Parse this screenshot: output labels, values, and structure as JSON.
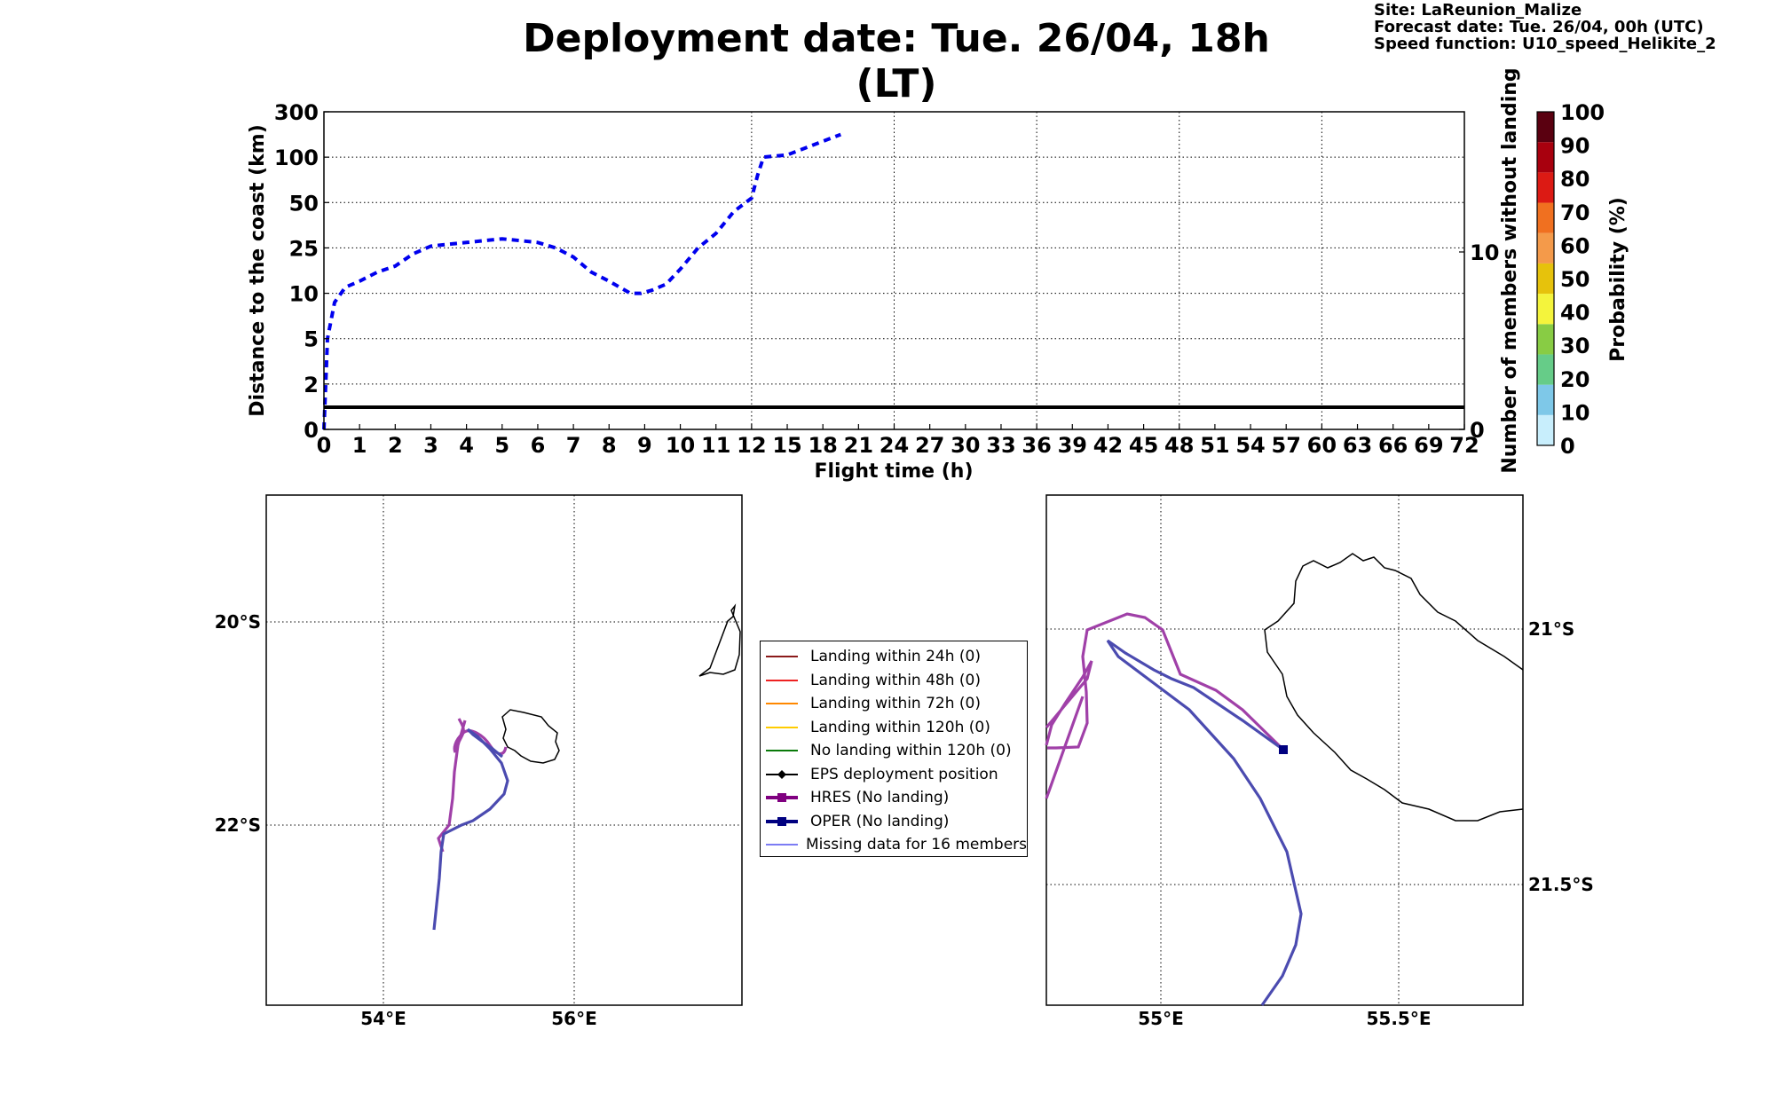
{
  "title": "Deployment date: Tue. 26/04, 18h (LT)",
  "meta": {
    "site": "Site: LaReunion_Malize",
    "forecast": "Forecast date: Tue. 26/04, 00h (UTC)",
    "speed": "Speed function: U10_speed_Helikite_2"
  },
  "chart_data": [
    {
      "type": "line",
      "xlabel": "Flight time (h)",
      "ylabel": "Distance to the coast (km)",
      "y2label": "Number of members without landing",
      "x_ticks": [
        "0",
        "1",
        "2",
        "3",
        "4",
        "5",
        "6",
        "7",
        "8",
        "9",
        "10",
        "11",
        "12",
        "15",
        "18",
        "21",
        "24",
        "27",
        "30",
        "33",
        "36",
        "39",
        "42",
        "45",
        "48",
        "51",
        "54",
        "57",
        "60",
        "63",
        "66",
        "69",
        "72"
      ],
      "y_ticks": [
        "0",
        "2",
        "5",
        "10",
        "25",
        "50",
        "100",
        "300"
      ],
      "y2_ticks": [
        "0",
        "10"
      ],
      "series": [
        {
          "style": "dashed",
          "color": "#0000ee",
          "x": [
            0,
            0.1,
            0.3,
            0.6,
            1,
            1.5,
            2,
            2.5,
            3,
            3.5,
            4,
            4.5,
            5,
            5.5,
            6,
            6.5,
            7,
            7.5,
            8,
            8.3,
            8.6,
            8.9,
            9.2,
            9.6,
            10,
            10.5,
            11,
            11.5,
            12,
            12.5,
            13,
            15,
            17,
            18,
            19.5
          ],
          "y": [
            0,
            5,
            9,
            12,
            14,
            17,
            19,
            23,
            26,
            27,
            28,
            29,
            30,
            29,
            28,
            25,
            22,
            17,
            14,
            12,
            10,
            10,
            11,
            13,
            18,
            25,
            33,
            45,
            55,
            80,
            100,
            110,
            150,
            170,
            200
          ]
        },
        {
          "style": "solid",
          "color": "#000000",
          "axis": "right",
          "x": [
            0,
            72
          ],
          "y": [
            1,
            1
          ]
        }
      ],
      "grid": true
    },
    {
      "type": "heatmap",
      "name": "Probability colorbar",
      "label": "Probability (%)",
      "ticks": [
        "0",
        "10",
        "20",
        "30",
        "40",
        "50",
        "60",
        "70",
        "80",
        "90",
        "100"
      ],
      "colors": [
        "#c8eefc",
        "#7ec8e8",
        "#66cc88",
        "#88cc44",
        "#f4f43c",
        "#e6c20c",
        "#f49a4a",
        "#f07020",
        "#dc1a14",
        "#a8000e",
        "#5a0010"
      ]
    }
  ],
  "maps": {
    "left": {
      "x_ticks": [
        "54°E",
        "56°E"
      ],
      "y_ticks": [
        "20°S",
        "22°S"
      ]
    },
    "right": {
      "x_ticks": [
        "55°E",
        "55.5°E"
      ],
      "y_ticks": [
        "21°S",
        "21.5°S"
      ]
    }
  },
  "legend": {
    "items": [
      {
        "label": "Landing within 24h (0)",
        "color": "#8b1a1a",
        "marker": "none",
        "width": 2
      },
      {
        "label": "Landing within 48h (0)",
        "color": "#ee2222",
        "marker": "none",
        "width": 2
      },
      {
        "label": "Landing within 72h (0)",
        "color": "#ff8800",
        "marker": "none",
        "width": 2
      },
      {
        "label": "Landing within 120h (0)",
        "color": "#ffcc00",
        "marker": "none",
        "width": 2
      },
      {
        "label": "No landing within 120h (0)",
        "color": "#0a7a0a",
        "marker": "none",
        "width": 2
      },
      {
        "label": "EPS deployment position",
        "color": "#000000",
        "marker": "diamond",
        "width": 2
      },
      {
        "label": "HRES (No landing)",
        "color": "#800080",
        "marker": "square",
        "width": 4
      },
      {
        "label": "OPER (No landing)",
        "color": "#000080",
        "marker": "square",
        "width": 4
      },
      {
        "label": "Missing data for 16 members",
        "color": "#5050f0",
        "marker": "none",
        "width": 1.5
      }
    ]
  }
}
